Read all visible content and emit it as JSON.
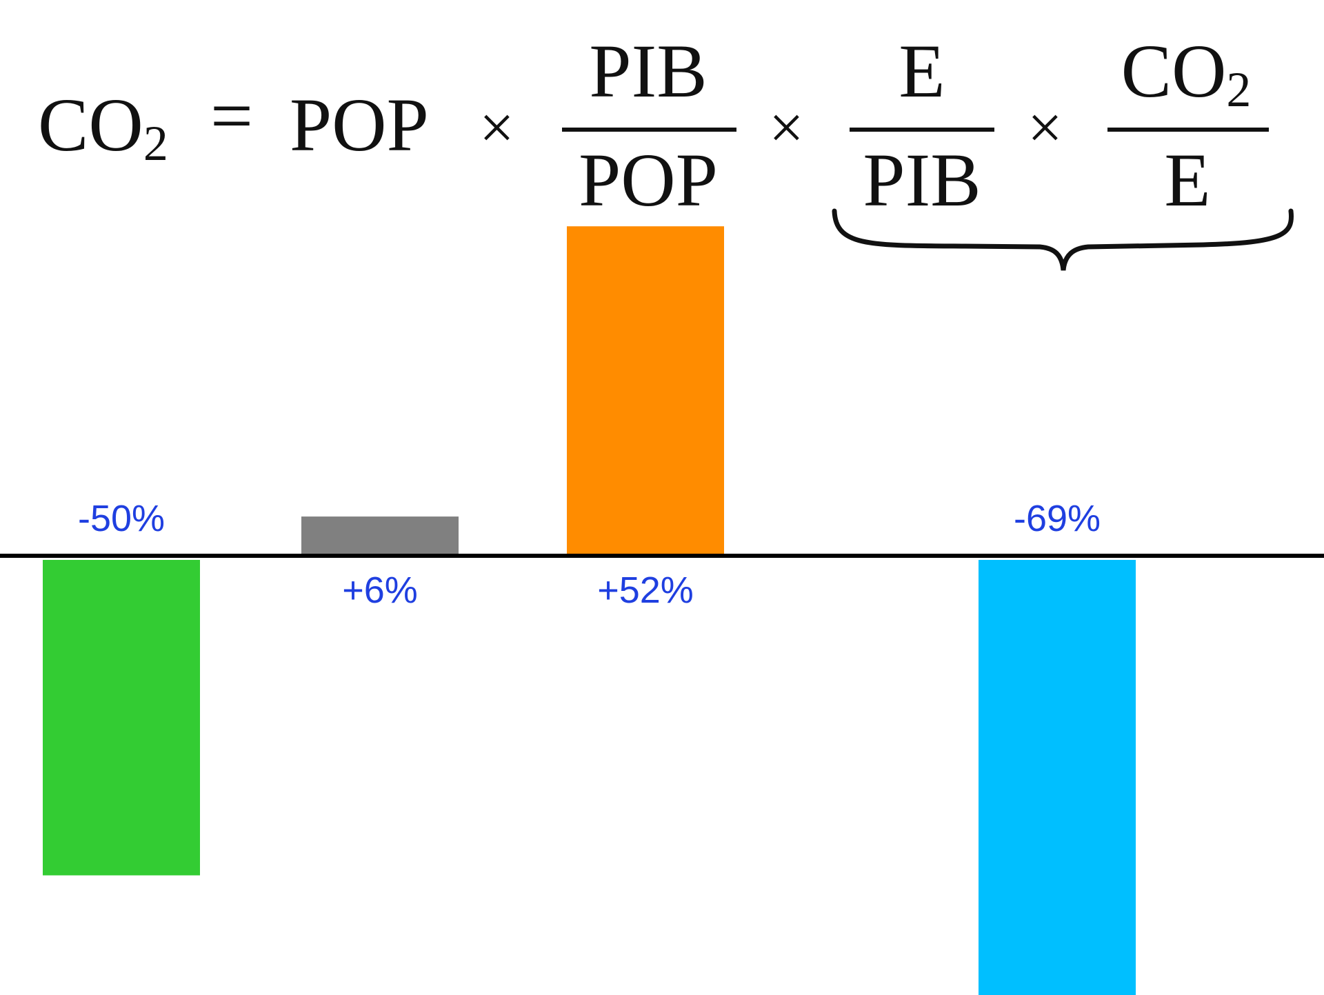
{
  "equation": {
    "lhs_base": "CO",
    "lhs_sub": "2",
    "equals": "=",
    "times": "×",
    "term1": "POP",
    "frac1": {
      "num": "PIB",
      "den": "POP"
    },
    "frac2": {
      "num": "E",
      "den": "PIB"
    },
    "frac3": {
      "num_base": "CO",
      "num_sub": "2",
      "den": "E"
    }
  },
  "chart_data": {
    "type": "bar",
    "title": "",
    "xlabel": "",
    "ylabel": "",
    "categories": [
      "CO2",
      "POP",
      "PIB/POP",
      "E/PIB × CO2/E"
    ],
    "values": [
      -50,
      6,
      52,
      -69
    ],
    "labels": [
      "-50%",
      "+6%",
      "+52%",
      "-69%"
    ],
    "colors": [
      "#33cc33",
      "#808080",
      "#ff8c00",
      "#00bfff"
    ],
    "label_color": "#1f3fe0",
    "ylim": [
      -69,
      52
    ],
    "baseline": 0,
    "grid": false,
    "legend": "none"
  }
}
